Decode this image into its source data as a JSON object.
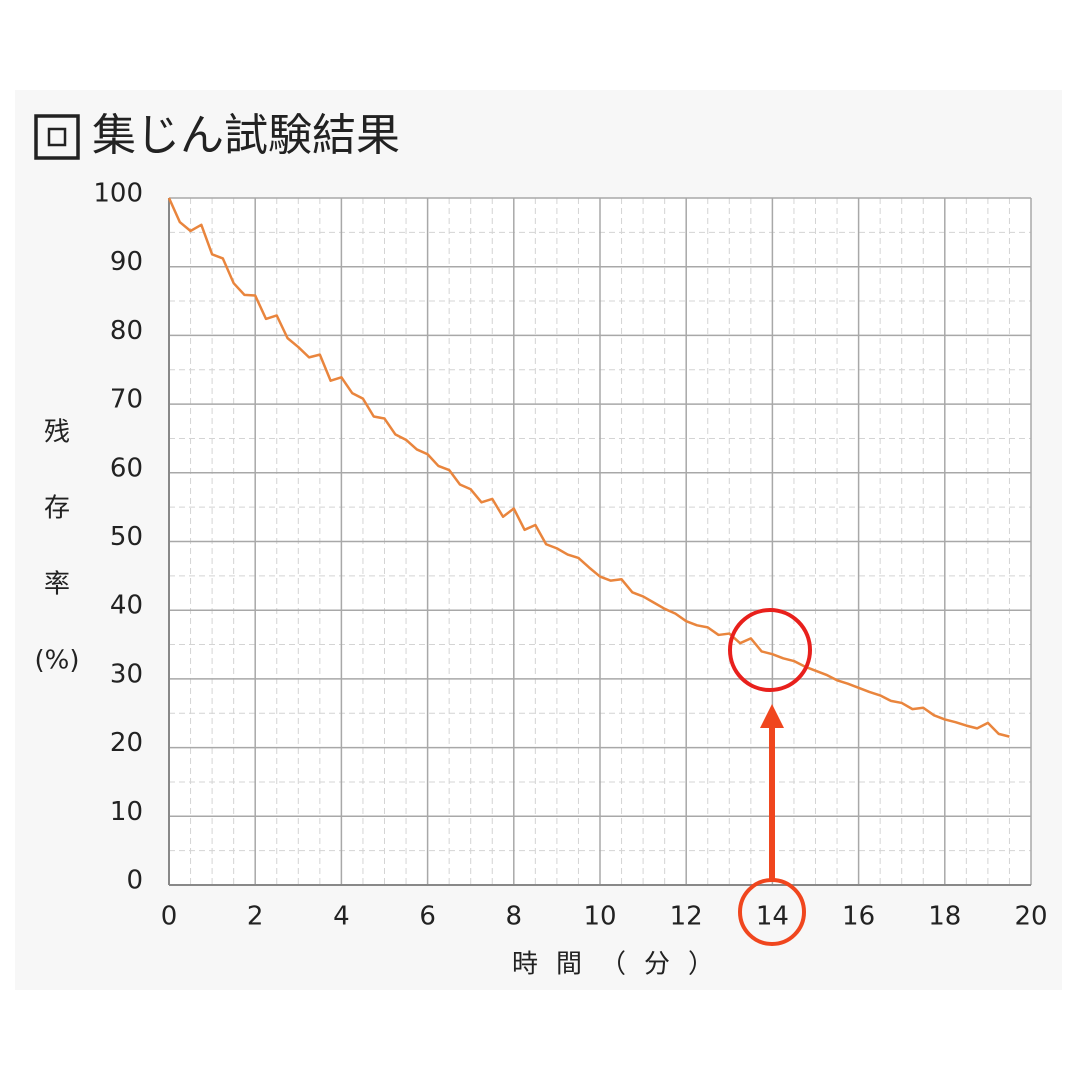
{
  "chart_data": {
    "type": "line",
    "title": "集じん試験結果",
    "x_label": "時間（分）",
    "y_label_lines": [
      "残",
      "存",
      "率",
      "(%)"
    ],
    "x": [
      0,
      0.25,
      0.5,
      0.75,
      1,
      1.25,
      1.5,
      1.75,
      2,
      2.25,
      2.5,
      2.75,
      3,
      3.25,
      3.5,
      3.75,
      4,
      4.25,
      4.5,
      4.75,
      5,
      5.25,
      5.5,
      5.75,
      6,
      6.25,
      6.5,
      6.75,
      7,
      7.25,
      7.5,
      7.75,
      8,
      8.25,
      8.5,
      8.75,
      9,
      9.25,
      9.5,
      9.75,
      10,
      10.25,
      10.5,
      10.75,
      11,
      11.25,
      11.5,
      11.75,
      12,
      12.25,
      12.5,
      12.75,
      13,
      13.25,
      13.5,
      13.75,
      14,
      14.25,
      14.5,
      14.75,
      15,
      15.25,
      15.5,
      15.75,
      16,
      16.25,
      16.5,
      16.75,
      17,
      17.25,
      17.5,
      17.75,
      18,
      18.25,
      18.5,
      18.75,
      19,
      19.25,
      19.5
    ],
    "series": [
      {
        "color": "#e9853d",
        "values": [
          100,
          96.5,
          95.2,
          96.1,
          91.8,
          91.2,
          87.6,
          85.9,
          85.8,
          82.4,
          82.9,
          79.6,
          78.3,
          76.8,
          77.2,
          73.4,
          73.9,
          71.6,
          70.8,
          68.2,
          67.9,
          65.6,
          64.8,
          63.4,
          62.7,
          61.0,
          60.4,
          58.3,
          57.6,
          55.7,
          56.2,
          53.6,
          54.8,
          51.7,
          52.4,
          49.6,
          49.0,
          48.1,
          47.6,
          46.2,
          44.9,
          44.3,
          44.5,
          42.6,
          42.0,
          41.1,
          40.2,
          39.5,
          38.4,
          37.8,
          37.5,
          36.4,
          36.6,
          35.2,
          35.9,
          34.0,
          33.6,
          33.0,
          32.6,
          31.8,
          31.2,
          30.6,
          29.8,
          29.3,
          28.7,
          28.1,
          27.6,
          26.8,
          26.5,
          25.6,
          25.8,
          24.7,
          24.1,
          23.7,
          23.2,
          22.8,
          23.6,
          22.0,
          21.6
        ]
      }
    ],
    "xlim": [
      0,
      20
    ],
    "xticks": [
      0,
      2,
      4,
      6,
      8,
      10,
      12,
      14,
      16,
      18,
      20
    ],
    "ylim": [
      0,
      100
    ],
    "yticks": [
      0,
      10,
      20,
      30,
      40,
      50,
      60,
      70,
      80,
      90,
      100
    ],
    "grid": true
  }
}
